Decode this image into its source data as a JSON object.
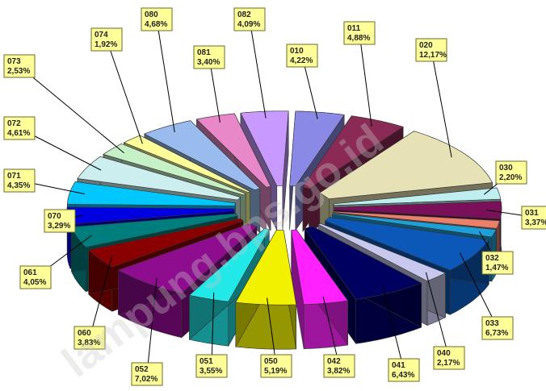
{
  "chart_data": {
    "type": "pie",
    "exploded": true,
    "three_d": true,
    "slices": [
      {
        "code": "010",
        "value": "4,22%",
        "pct": 4.22,
        "color": "#8a8ae6"
      },
      {
        "code": "011",
        "value": "4,88%",
        "pct": 4.88,
        "color": "#8b2a55"
      },
      {
        "code": "020",
        "value": "12,17%",
        "pct": 12.17,
        "color": "#e7e2b6"
      },
      {
        "code": "030",
        "value": "2,20%",
        "pct": 2.2,
        "color": "#bfeef0"
      },
      {
        "code": "031",
        "value": "3,37%",
        "pct": 3.37,
        "color": "#7a0f5a"
      },
      {
        "code": "",
        "value": "",
        "pct": 1.5,
        "color": "#e8806a"
      },
      {
        "code": "032",
        "value": "1,47%",
        "pct": 1.47,
        "color": "#1da0d8"
      },
      {
        "code": "033",
        "value": "6,73%",
        "pct": 6.73,
        "color": "#0b58b8"
      },
      {
        "code": "040",
        "value": "2,17%",
        "pct": 2.17,
        "color": "#c8c8ee"
      },
      {
        "code": "041",
        "value": "6,43%",
        "pct": 6.43,
        "color": "#000060"
      },
      {
        "code": "042",
        "value": "3,82%",
        "pct": 3.82,
        "color": "#ff22ff"
      },
      {
        "code": "050",
        "value": "5,19%",
        "pct": 5.19,
        "color": "#f2f200"
      },
      {
        "code": "051",
        "value": "3,55%",
        "pct": 3.55,
        "color": "#22e8e8"
      },
      {
        "code": "052",
        "value": "7,02%",
        "pct": 7.02,
        "color": "#8e0c8e"
      },
      {
        "code": "060",
        "value": "3,83%",
        "pct": 3.83,
        "color": "#8a0000"
      },
      {
        "code": "061",
        "value": "4,05%",
        "pct": 4.05,
        "color": "#007e7e"
      },
      {
        "code": "070",
        "value": "3,29%",
        "pct": 3.29,
        "color": "#0000e0"
      },
      {
        "code": "071",
        "value": "4,35%",
        "pct": 4.35,
        "color": "#00c8ff"
      },
      {
        "code": "072",
        "value": "4,61%",
        "pct": 4.61,
        "color": "#cceeee"
      },
      {
        "code": "073",
        "value": "2,53%",
        "pct": 2.53,
        "color": "#c6f0c6"
      },
      {
        "code": "074",
        "value": "1,92%",
        "pct": 1.92,
        "color": "#ffff99"
      },
      {
        "code": "080",
        "value": "4,68%",
        "pct": 4.68,
        "color": "#99bbee"
      },
      {
        "code": "081",
        "value": "3,40%",
        "pct": 3.4,
        "color": "#e888c8"
      },
      {
        "code": "082",
        "value": "4,09%",
        "pct": 4.09,
        "color": "#c89aff"
      }
    ],
    "watermark": "lampung.bps.go.id"
  }
}
